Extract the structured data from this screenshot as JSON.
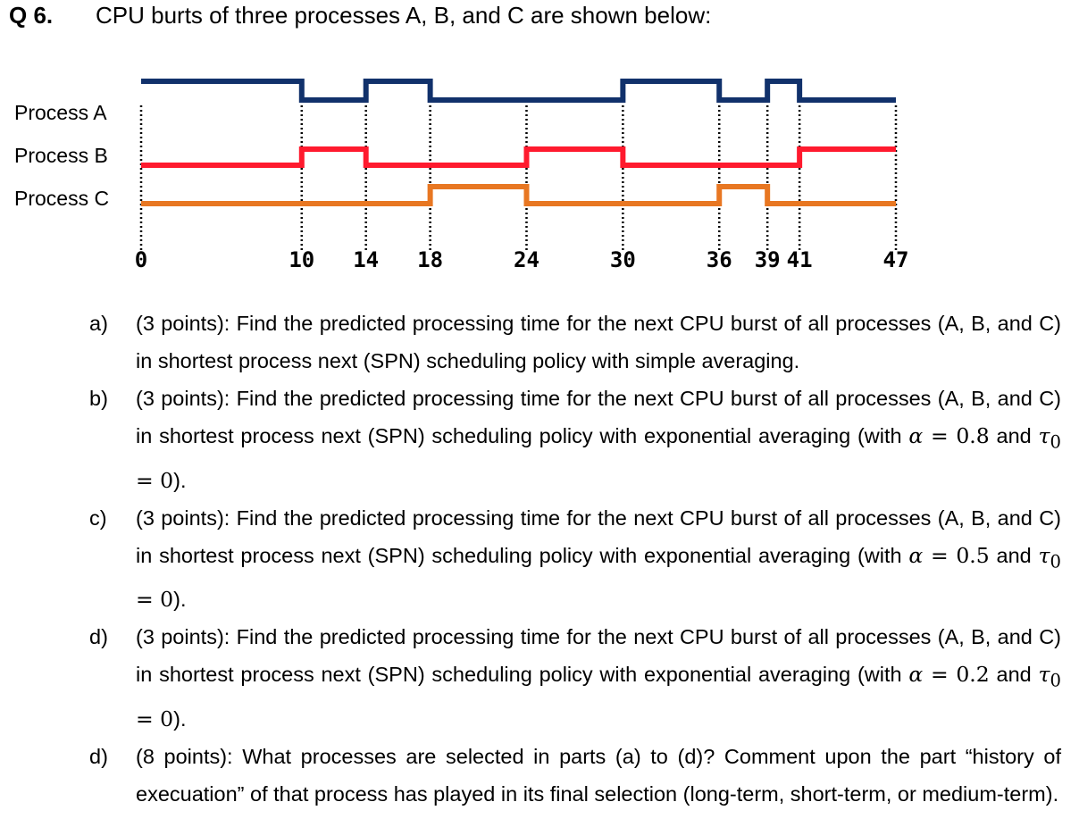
{
  "question": {
    "number": "Q 6.",
    "title": "CPU burts of three processes A, B, and C are shown below:"
  },
  "chart_data": {
    "type": "timing-diagram",
    "x_ticks": [
      0,
      10,
      14,
      18,
      24,
      30,
      36,
      39,
      41,
      47
    ],
    "x_range": [
      0,
      47
    ],
    "series": [
      {
        "name": "Process A",
        "color": "#11316b",
        "high_intervals": [
          [
            0,
            10
          ],
          [
            14,
            18
          ],
          [
            30,
            36
          ],
          [
            39,
            41
          ]
        ]
      },
      {
        "name": "Process B",
        "color": "#ff1a2e",
        "high_intervals": [
          [
            10,
            14
          ],
          [
            24,
            30
          ],
          [
            41,
            47
          ]
        ]
      },
      {
        "name": "Process C",
        "color": "#e87722",
        "high_intervals": [
          [
            18,
            24
          ],
          [
            36,
            39
          ]
        ]
      }
    ],
    "dotted_guides": [
      0,
      10,
      14,
      18,
      24,
      30,
      36,
      39,
      41,
      47
    ]
  },
  "parts": [
    {
      "letter": "a)",
      "text": "(3 points): Find the predicted processing time for the next CPU burst of all processes (A, B, and C) in shortest process next (SPN) scheduling policy with simple averaging."
    },
    {
      "letter": "b)",
      "text_before": "(3 points): Find the predicted processing time for the next CPU burst of all processes (A, B, and C) in shortest process next (SPN) scheduling policy with exponential averaging (with ",
      "alpha_symbol": "α",
      "alpha_value": "0.8",
      "and_text": " and ",
      "tau_symbol": "τ",
      "tau_sub": "0",
      "tau_value": "0",
      "text_after": ")."
    },
    {
      "letter": "c)",
      "text_before": "(3 points): Find the predicted processing time for the next CPU burst of all processes (A, B, and C) in shortest process next (SPN) scheduling policy with exponential averaging (with ",
      "alpha_symbol": "α",
      "alpha_value": "0.5",
      "and_text": " and ",
      "tau_symbol": "τ",
      "tau_sub": "0",
      "tau_value": "0",
      "text_after": ")."
    },
    {
      "letter": "d)",
      "text_before": "(3 points): Find the predicted processing time for the next CPU burst of all processes (A, B, and C) in shortest process next (SPN) scheduling policy with exponential averaging (with ",
      "alpha_symbol": "α",
      "alpha_value": "0.2",
      "and_text": " and ",
      "tau_symbol": "τ",
      "tau_sub": "0",
      "tau_value": "0",
      "text_after": ")."
    },
    {
      "letter": "d)",
      "text": "(8 points): What processes are selected in parts (a) to (d)? Comment upon the part “history of execuation” of that process has played in its final selection (long-term, short-term, or medium-term)."
    }
  ]
}
